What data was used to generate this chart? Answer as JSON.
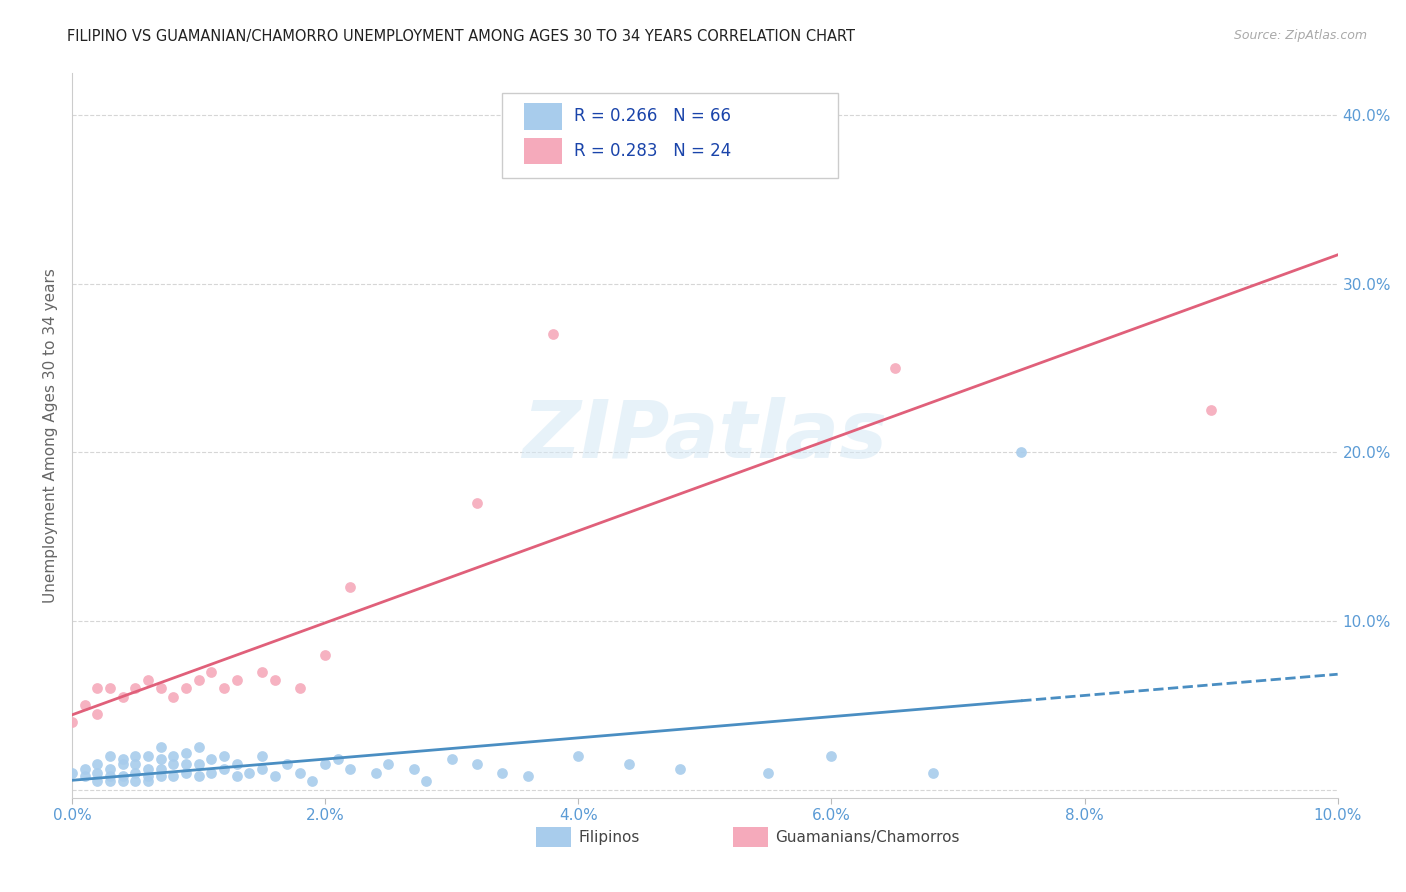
{
  "title": "FILIPINO VS GUAMANIAN/CHAMORRO UNEMPLOYMENT AMONG AGES 30 TO 34 YEARS CORRELATION CHART",
  "source": "Source: ZipAtlas.com",
  "ylabel": "Unemployment Among Ages 30 to 34 years",
  "xlim": [
    0.0,
    0.1
  ],
  "ylim": [
    -0.005,
    0.425
  ],
  "xticks": [
    0.0,
    0.02,
    0.04,
    0.06,
    0.08,
    0.1
  ],
  "yticks": [
    0.0,
    0.1,
    0.2,
    0.3,
    0.4
  ],
  "r_filipino": 0.266,
  "n_filipino": 66,
  "r_guamanian": 0.283,
  "n_guamanian": 24,
  "filipino_color": "#A8CCEC",
  "guamanian_color": "#F5AABB",
  "trendline_filipino_color": "#4A8EC2",
  "trendline_guamanian_color": "#E0607A",
  "axis_label_color": "#5B9BD5",
  "grid_color": "#CCCCCC",
  "title_color": "#222222",
  "watermark_color": "#D5E8F5",
  "watermark_text": "ZIPatlas",
  "filipino_x": [
    0.0,
    0.001,
    0.001,
    0.002,
    0.002,
    0.002,
    0.003,
    0.003,
    0.003,
    0.003,
    0.004,
    0.004,
    0.004,
    0.004,
    0.005,
    0.005,
    0.005,
    0.005,
    0.006,
    0.006,
    0.006,
    0.006,
    0.007,
    0.007,
    0.007,
    0.007,
    0.008,
    0.008,
    0.008,
    0.009,
    0.009,
    0.009,
    0.01,
    0.01,
    0.01,
    0.011,
    0.011,
    0.012,
    0.012,
    0.013,
    0.013,
    0.014,
    0.015,
    0.015,
    0.016,
    0.017,
    0.018,
    0.019,
    0.02,
    0.021,
    0.022,
    0.024,
    0.025,
    0.027,
    0.028,
    0.03,
    0.032,
    0.034,
    0.036,
    0.04,
    0.044,
    0.048,
    0.055,
    0.06,
    0.068,
    0.075
  ],
  "filipino_y": [
    0.01,
    0.008,
    0.012,
    0.005,
    0.01,
    0.015,
    0.005,
    0.008,
    0.012,
    0.02,
    0.005,
    0.008,
    0.015,
    0.018,
    0.005,
    0.01,
    0.015,
    0.02,
    0.005,
    0.008,
    0.012,
    0.02,
    0.008,
    0.012,
    0.018,
    0.025,
    0.008,
    0.015,
    0.02,
    0.01,
    0.015,
    0.022,
    0.008,
    0.015,
    0.025,
    0.01,
    0.018,
    0.012,
    0.02,
    0.008,
    0.015,
    0.01,
    0.012,
    0.02,
    0.008,
    0.015,
    0.01,
    0.005,
    0.015,
    0.018,
    0.012,
    0.01,
    0.015,
    0.012,
    0.005,
    0.018,
    0.015,
    0.01,
    0.008,
    0.02,
    0.015,
    0.012,
    0.01,
    0.02,
    0.01,
    0.2
  ],
  "guamanian_x": [
    0.0,
    0.001,
    0.002,
    0.002,
    0.003,
    0.004,
    0.005,
    0.006,
    0.007,
    0.008,
    0.009,
    0.01,
    0.011,
    0.012,
    0.013,
    0.015,
    0.016,
    0.018,
    0.02,
    0.022,
    0.032,
    0.038,
    0.065,
    0.09
  ],
  "guamanian_y": [
    0.04,
    0.05,
    0.045,
    0.06,
    0.06,
    0.055,
    0.06,
    0.065,
    0.06,
    0.055,
    0.06,
    0.065,
    0.07,
    0.06,
    0.065,
    0.07,
    0.065,
    0.06,
    0.08,
    0.12,
    0.17,
    0.27,
    0.25,
    0.225
  ],
  "legend_labels": [
    "Filipinos",
    "Guamanians/Chamorros"
  ]
}
